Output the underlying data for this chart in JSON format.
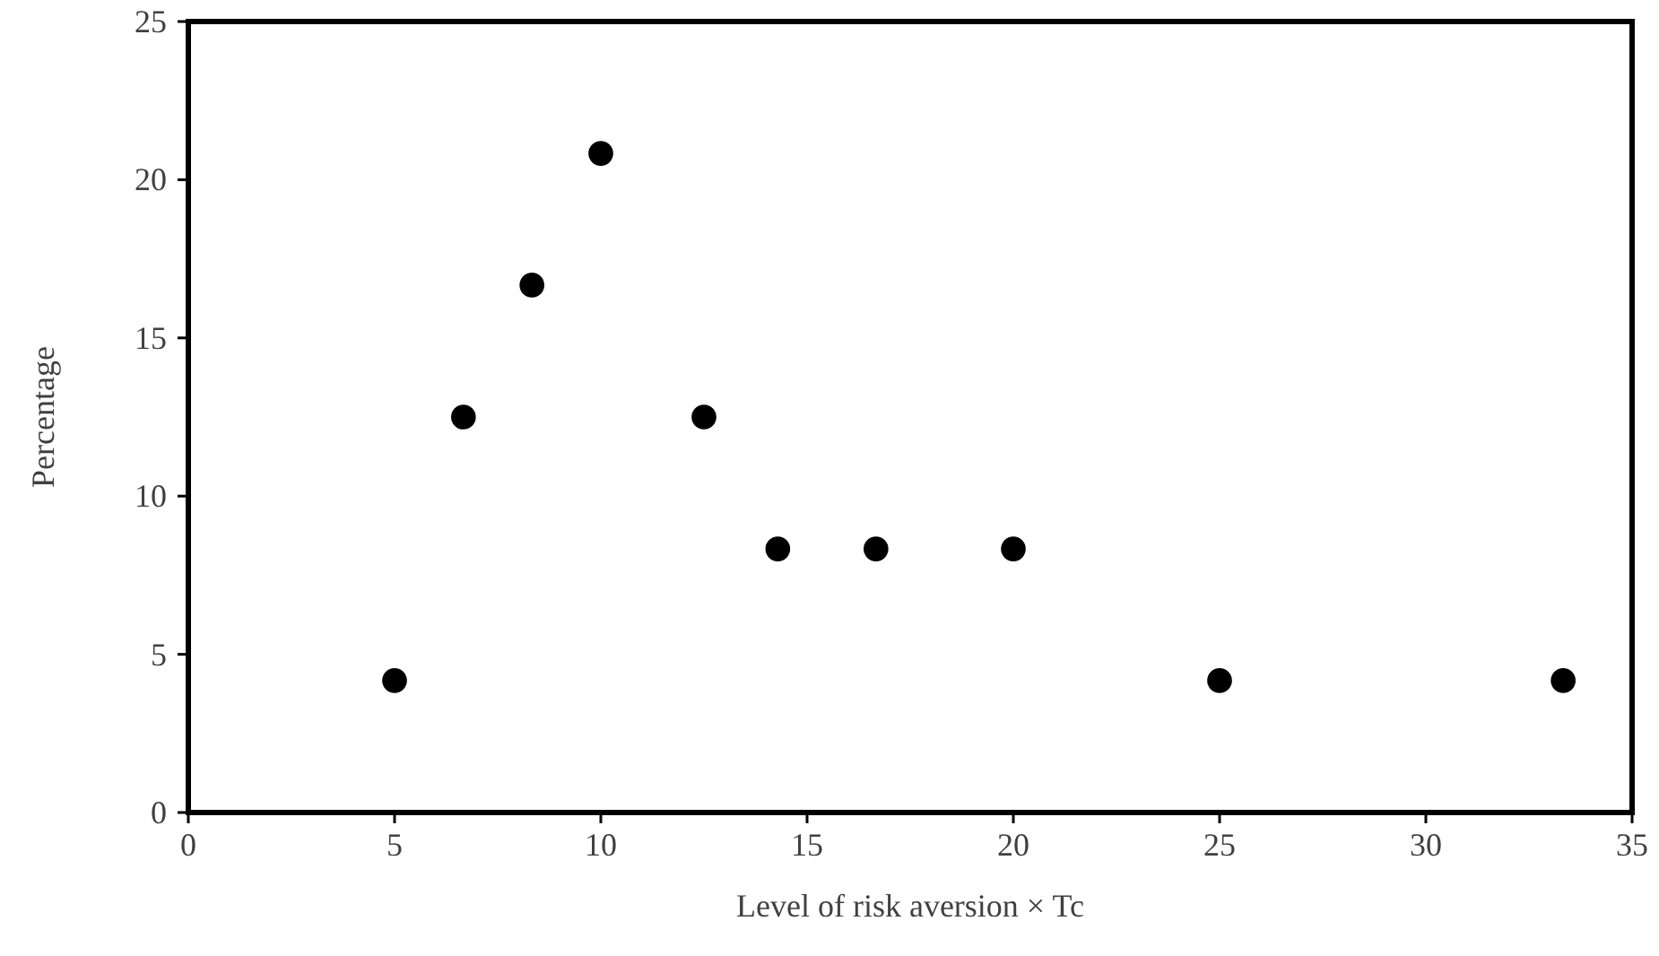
{
  "chart_data": {
    "type": "scatter",
    "xlabel": "Level of risk aversion × Tc",
    "ylabel": "Percentage",
    "x": [
      5,
      6.67,
      8.33,
      10,
      12.5,
      14.29,
      16.67,
      20,
      25,
      33.33
    ],
    "values": [
      4.17,
      12.5,
      16.67,
      20.83,
      12.5,
      8.33,
      8.33,
      8.33,
      4.17,
      4.17
    ],
    "color": "#000000",
    "marker": "circle",
    "grid": false,
    "xlim": [
      0,
      35
    ],
    "xticks": [
      0,
      5,
      10,
      15,
      20,
      25,
      30,
      35
    ],
    "ylim": [
      0,
      25
    ],
    "yticks": [
      0,
      5,
      10,
      15,
      20,
      25
    ]
  }
}
